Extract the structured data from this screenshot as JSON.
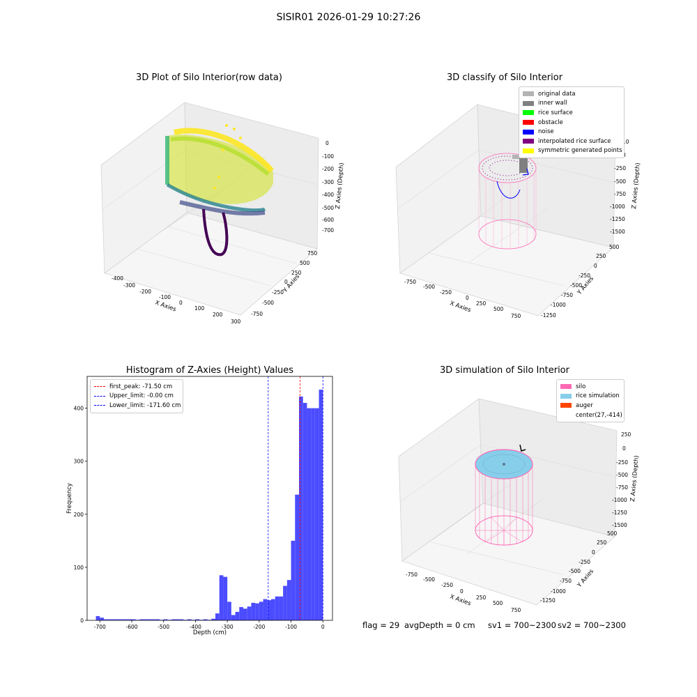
{
  "suptitle": "SISIR01 2026-01-29 10:27:26",
  "plot1": {
    "title": "3D Plot of Silo Interior(row data)",
    "xlabel": "X Axies",
    "ylabel": "Y Axies",
    "zlabel": "Z Axies (Depth)",
    "xticks": [
      "-400",
      "-300",
      "-200",
      "-100",
      "0",
      "100",
      "200",
      "300"
    ],
    "yticks": [
      "-750",
      "-500",
      "-250",
      "0",
      "250",
      "500",
      "750"
    ],
    "zticks": [
      "0",
      "-100",
      "-200",
      "-300",
      "-400",
      "-500",
      "-600",
      "-700"
    ]
  },
  "plot2": {
    "title": "3D classify of Silo Interior",
    "xlabel": "X Axies",
    "ylabel": "Y Axies",
    "zlabel": "Z Axies (Depth)",
    "xticks": [
      "-750",
      "-500",
      "-250",
      "0",
      "250",
      "500",
      "750"
    ],
    "yticks": [
      "-1250",
      "-1000",
      "-750",
      "-500",
      "-250",
      "0",
      "250",
      "500"
    ],
    "zticks": [
      "0",
      "-250",
      "-500",
      "-750",
      "-1000",
      "-1250",
      "-1500"
    ],
    "ztop_partial": "10",
    "legend": [
      {
        "label": "original data",
        "color": "#b3b3b3"
      },
      {
        "label": "inner wall",
        "color": "#808080"
      },
      {
        "label": "rice surface",
        "color": "#00ff00"
      },
      {
        "label": "obstacle",
        "color": "#ff0000"
      },
      {
        "label": "noise",
        "color": "#0000ff"
      },
      {
        "label": "interpolated rice surface",
        "color": "#800080"
      },
      {
        "label": "symmetric generated points",
        "color": "#ffff00"
      }
    ]
  },
  "chart_data": {
    "type": "bar",
    "title": "Histogram of Z-Axies (Height) Values",
    "xlabel": "Depth (cm)",
    "ylabel": "Frequency",
    "xlim": [
      -740,
      30
    ],
    "ylim": [
      0,
      460
    ],
    "xticks": [
      -700,
      -600,
      -500,
      -400,
      -300,
      -200,
      -100,
      0
    ],
    "yticks": [
      0,
      100,
      200,
      300,
      400
    ],
    "bin_width": 12.5,
    "x": [
      -712.5,
      -700,
      -687.5,
      -675,
      -662.5,
      -650,
      -637.5,
      -625,
      -612.5,
      -600,
      -587.5,
      -575,
      -562.5,
      -550,
      -537.5,
      -525,
      -512.5,
      -500,
      -487.5,
      -475,
      -462.5,
      -450,
      -437.5,
      -425,
      -412.5,
      -400,
      -387.5,
      -375,
      -362.5,
      -350,
      -337.5,
      -325,
      -312.5,
      -300,
      -287.5,
      -275,
      -262.5,
      -250,
      -237.5,
      -225,
      -212.5,
      -200,
      -187.5,
      -175,
      -162.5,
      -150,
      -137.5,
      -125,
      -112.5,
      -100,
      -87.5,
      -75,
      -62.5,
      -50,
      -37.5,
      -25,
      -12.5
    ],
    "values": [
      8,
      5,
      2,
      2,
      2,
      2,
      2,
      2,
      2,
      2,
      1,
      2,
      2,
      2,
      2,
      2,
      1,
      2,
      1,
      2,
      2,
      2,
      1,
      2,
      1,
      2,
      1,
      2,
      1,
      3,
      13,
      85,
      82,
      35,
      10,
      16,
      25,
      22,
      26,
      33,
      32,
      35,
      40,
      38,
      40,
      45,
      45,
      65,
      76,
      150,
      237,
      422,
      410,
      400,
      400,
      400,
      435
    ],
    "vlines": [
      {
        "label": "first_peak: -71.50 cm",
        "x": -71.5,
        "color": "#ff0000"
      },
      {
        "label": "Upper_limit: -0.00 cm",
        "x": 0,
        "color": "#0000ff"
      },
      {
        "label": "Lower_limit: -171.60 cm",
        "x": -171.6,
        "color": "#0000ff"
      }
    ],
    "bar_color": "#4c4cff"
  },
  "plot4": {
    "title": "3D simulation of Silo Interior",
    "xlabel": "X Axies",
    "ylabel": "Y Axies",
    "zlabel": "Z Axies (Depth)",
    "xticks": [
      "-750",
      "-500",
      "-250",
      "0",
      "250",
      "500",
      "750"
    ],
    "yticks": [
      "-1250",
      "-1000",
      "-750",
      "-500",
      "-250",
      "0",
      "250",
      "500"
    ],
    "zticks": [
      "250",
      "0",
      "-250",
      "-500",
      "-750",
      "-1000",
      "-1250",
      "-1500"
    ],
    "legend": [
      {
        "label": "silo",
        "color": "#ff69b4"
      },
      {
        "label": "rice simulation",
        "color": "#87ceeb"
      },
      {
        "label": "auger",
        "color": "#ff4500"
      },
      {
        "label": "center(27,-414)",
        "color": ""
      }
    ]
  },
  "footer": {
    "flag": "flag = 29",
    "avg": "avgDepth = 0 cm",
    "sv1": "sv1 = 700~2300",
    "sv2": "sv2 = 700~2300"
  }
}
